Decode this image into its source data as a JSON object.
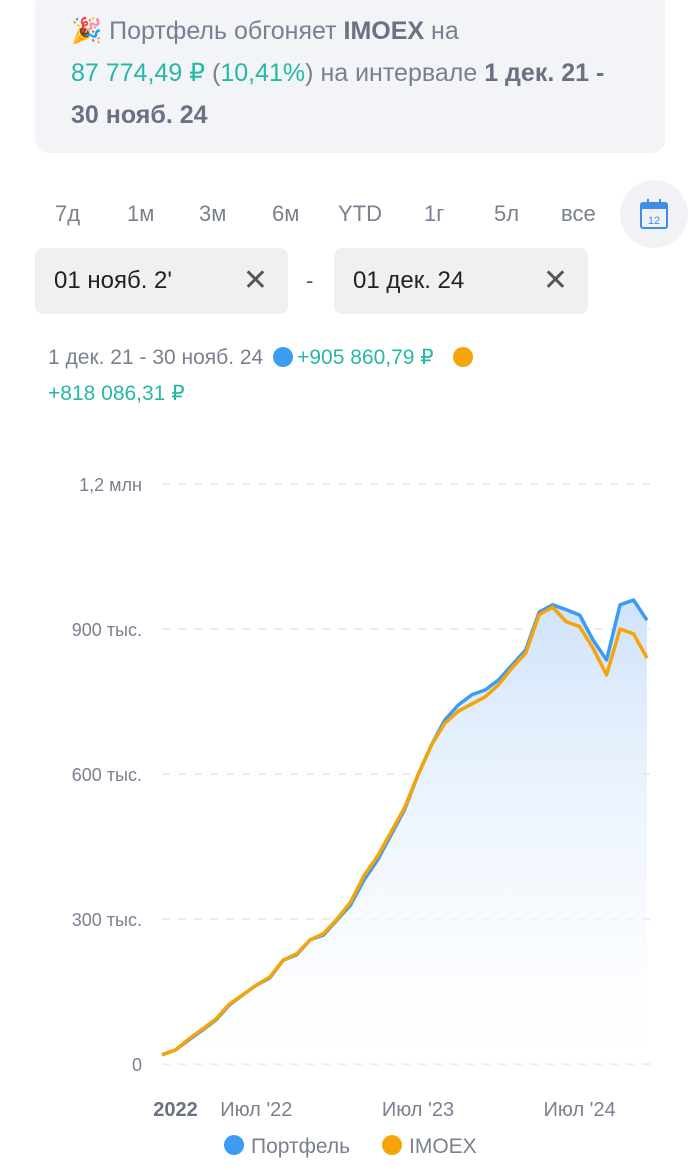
{
  "banner": {
    "emoji": "🎉",
    "text1": "Портфель обгоняет",
    "index_name": "IMOEX",
    "text2": "на",
    "diff_amount": "87 774,49 ₽",
    "diff_percent": "10,41%",
    "text3": "на интервале",
    "interval": "1 дек. 21 - 30 нояб. 24"
  },
  "periods": [
    "7д",
    "1м",
    "3м",
    "6м",
    "YTD",
    "1г",
    "5л",
    "все"
  ],
  "calendar_icon_text": "12",
  "date_from": "01 нояб. 2'",
  "date_to": "01 дек. 24",
  "range_dash": "-",
  "summary": {
    "interval": "1 дек. 21 - 30 нояб. 24",
    "portfolio_change": "+905 860,79 ₽",
    "imoex_change": "+818 086,31 ₽"
  },
  "colors": {
    "portfolio": "#3d9bf2",
    "imoex": "#f5a50a",
    "positive": "#26b8a4"
  },
  "chart_data": {
    "type": "line",
    "x": [
      "2021-12",
      "2022-01",
      "2022-02",
      "2022-03",
      "2022-04",
      "2022-05",
      "2022-06",
      "2022-07",
      "2022-08",
      "2022-09",
      "2022-10",
      "2022-11",
      "2022-12",
      "2023-01",
      "2023-02",
      "2023-03",
      "2023-04",
      "2023-05",
      "2023-06",
      "2023-07",
      "2023-08",
      "2023-09",
      "2023-10",
      "2023-11",
      "2023-12",
      "2024-01",
      "2024-02",
      "2024-03",
      "2024-04",
      "2024-05",
      "2024-06",
      "2024-07",
      "2024-08",
      "2024-09",
      "2024-10",
      "2024-11",
      "2024-11-30"
    ],
    "series": [
      {
        "name": "Портфель",
        "values": [
          19000,
          29000,
          50000,
          70000,
          91000,
          122000,
          143000,
          163000,
          178000,
          215000,
          226000,
          257000,
          267000,
          298000,
          329000,
          381000,
          422000,
          474000,
          526000,
          598000,
          660000,
          712000,
          743000,
          764000,
          774000,
          795000,
          826000,
          857000,
          935000,
          950000,
          940000,
          929000,
          877000,
          836000,
          950000,
          960000,
          918000
        ]
      },
      {
        "name": "IMOEX",
        "values": [
          19000,
          29000,
          52000,
          72000,
          93000,
          124000,
          143000,
          163000,
          180000,
          215000,
          228000,
          257000,
          270000,
          300000,
          335000,
          390000,
          430000,
          480000,
          530000,
          598000,
          660000,
          705000,
          730000,
          745000,
          760000,
          785000,
          820000,
          850000,
          930000,
          945000,
          915000,
          905000,
          860000,
          805000,
          900000,
          890000,
          840000
        ]
      }
    ],
    "yticks": [
      "0",
      "300 тыс.",
      "600 тыс.",
      "900 тыс.",
      "1,2 млн"
    ],
    "ytick_values": [
      0,
      300000,
      600000,
      900000,
      1200000
    ],
    "xticks": [
      "2022",
      "Июл '22",
      "Июл '23",
      "Июл '24"
    ],
    "xtick_positions": [
      "2022-01",
      "2022-07",
      "2023-07",
      "2024-07"
    ],
    "ylim": [
      0,
      1200000
    ],
    "grid": true,
    "legend": "bottom"
  }
}
